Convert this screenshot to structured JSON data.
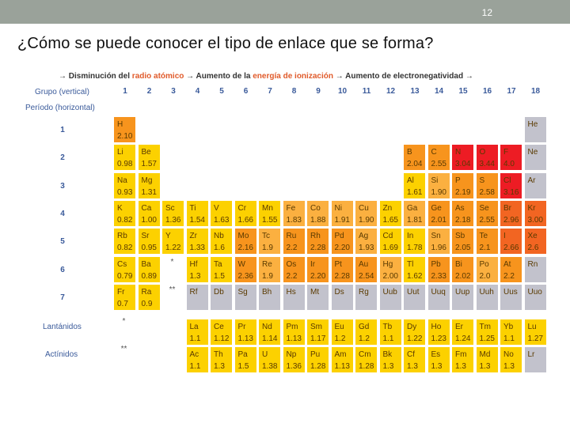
{
  "page_number": "12",
  "title": "¿Cómo se puede conocer el tipo de enlace que se forma?",
  "table": {
    "header_parts": [
      "→ Disminución del ",
      "radio atómico",
      " → Aumento de la ",
      "energía de ionización",
      " → Aumento de electronegatividad →"
    ],
    "group_label": "Grupo (vertical)",
    "period_label": "Período (horizontal)",
    "lanthanides_label": "Lantánidos",
    "actinides_label": "Actínidos",
    "groups": [
      "1",
      "2",
      "3",
      "4",
      "5",
      "6",
      "7",
      "8",
      "9",
      "10",
      "11",
      "12",
      "13",
      "14",
      "15",
      "16",
      "17",
      "18"
    ],
    "periods": [
      "1",
      "2",
      "3",
      "4",
      "5",
      "6",
      "7"
    ],
    "star_marks": [
      "*",
      "**",
      "*",
      "**"
    ],
    "colors": {
      "yellow": "#fcd100",
      "light_orange": "#fbb040",
      "orange": "#f7941d",
      "dark_orange": "#f26522",
      "red": "#ed1c24",
      "gray": "#c2c2cc"
    },
    "elements": [
      {
        "s": "H",
        "v": "2.10",
        "r": 1,
        "c": 1,
        "k": "orange"
      },
      {
        "s": "He",
        "v": "",
        "r": 1,
        "c": 18,
        "k": "gray"
      },
      {
        "s": "Li",
        "v": "0.98",
        "r": 2,
        "c": 1,
        "k": "yellow"
      },
      {
        "s": "Be",
        "v": "1.57",
        "r": 2,
        "c": 2,
        "k": "yellow"
      },
      {
        "s": "B",
        "v": "2.04",
        "r": 2,
        "c": 13,
        "k": "orange"
      },
      {
        "s": "C",
        "v": "2.55",
        "r": 2,
        "c": 14,
        "k": "orange"
      },
      {
        "s": "N",
        "v": "3.04",
        "r": 2,
        "c": 15,
        "k": "red"
      },
      {
        "s": "O",
        "v": "3.44",
        "r": 2,
        "c": 16,
        "k": "red"
      },
      {
        "s": "F",
        "v": "4.0",
        "r": 2,
        "c": 17,
        "k": "red"
      },
      {
        "s": "Ne",
        "v": "",
        "r": 2,
        "c": 18,
        "k": "gray"
      },
      {
        "s": "Na",
        "v": "0.93",
        "r": 3,
        "c": 1,
        "k": "yellow"
      },
      {
        "s": "Mg",
        "v": "1.31",
        "r": 3,
        "c": 2,
        "k": "yellow"
      },
      {
        "s": "Al",
        "v": "1.61",
        "r": 3,
        "c": 13,
        "k": "yellow"
      },
      {
        "s": "Si",
        "v": "1.90",
        "r": 3,
        "c": 14,
        "k": "light_orange"
      },
      {
        "s": "P",
        "v": "2.19",
        "r": 3,
        "c": 15,
        "k": "orange"
      },
      {
        "s": "S",
        "v": "2.58",
        "r": 3,
        "c": 16,
        "k": "orange"
      },
      {
        "s": "Cl",
        "v": "3.16",
        "r": 3,
        "c": 17,
        "k": "red"
      },
      {
        "s": "Ar",
        "v": "",
        "r": 3,
        "c": 18,
        "k": "gray"
      },
      {
        "s": "K",
        "v": "0.82",
        "r": 4,
        "c": 1,
        "k": "yellow"
      },
      {
        "s": "Ca",
        "v": "1.00",
        "r": 4,
        "c": 2,
        "k": "yellow"
      },
      {
        "s": "Sc",
        "v": "1.36",
        "r": 4,
        "c": 3,
        "k": "yellow"
      },
      {
        "s": "Ti",
        "v": "1.54",
        "r": 4,
        "c": 4,
        "k": "yellow"
      },
      {
        "s": "V",
        "v": "1.63",
        "r": 4,
        "c": 5,
        "k": "yellow"
      },
      {
        "s": "Cr",
        "v": "1.66",
        "r": 4,
        "c": 6,
        "k": "yellow"
      },
      {
        "s": "Mn",
        "v": "1.55",
        "r": 4,
        "c": 7,
        "k": "yellow"
      },
      {
        "s": "Fe",
        "v": "1.83",
        "r": 4,
        "c": 8,
        "k": "light_orange"
      },
      {
        "s": "Co",
        "v": "1.88",
        "r": 4,
        "c": 9,
        "k": "light_orange"
      },
      {
        "s": "Ni",
        "v": "1.91",
        "r": 4,
        "c": 10,
        "k": "light_orange"
      },
      {
        "s": "Cu",
        "v": "1.90",
        "r": 4,
        "c": 11,
        "k": "light_orange"
      },
      {
        "s": "Zn",
        "v": "1.65",
        "r": 4,
        "c": 12,
        "k": "yellow"
      },
      {
        "s": "Ga",
        "v": "1.81",
        "r": 4,
        "c": 13,
        "k": "light_orange"
      },
      {
        "s": "Ge",
        "v": "2.01",
        "r": 4,
        "c": 14,
        "k": "orange"
      },
      {
        "s": "As",
        "v": "2.18",
        "r": 4,
        "c": 15,
        "k": "orange"
      },
      {
        "s": "Se",
        "v": "2.55",
        "r": 4,
        "c": 16,
        "k": "orange"
      },
      {
        "s": "Br",
        "v": "2.96",
        "r": 4,
        "c": 17,
        "k": "dark_orange"
      },
      {
        "s": "Kr",
        "v": "3.00",
        "r": 4,
        "c": 18,
        "k": "dark_orange"
      },
      {
        "s": "Rb",
        "v": "0.82",
        "r": 5,
        "c": 1,
        "k": "yellow"
      },
      {
        "s": "Sr",
        "v": "0.95",
        "r": 5,
        "c": 2,
        "k": "yellow"
      },
      {
        "s": "Y",
        "v": "1.22",
        "r": 5,
        "c": 3,
        "k": "yellow"
      },
      {
        "s": "Zr",
        "v": "1.33",
        "r": 5,
        "c": 4,
        "k": "yellow"
      },
      {
        "s": "Nb",
        "v": "1.6",
        "r": 5,
        "c": 5,
        "k": "yellow"
      },
      {
        "s": "Mo",
        "v": "2.16",
        "r": 5,
        "c": 6,
        "k": "orange"
      },
      {
        "s": "Tc",
        "v": "1.9",
        "r": 5,
        "c": 7,
        "k": "light_orange"
      },
      {
        "s": "Ru",
        "v": "2.2",
        "r": 5,
        "c": 8,
        "k": "orange"
      },
      {
        "s": "Rh",
        "v": "2.28",
        "r": 5,
        "c": 9,
        "k": "orange"
      },
      {
        "s": "Pd",
        "v": "2.20",
        "r": 5,
        "c": 10,
        "k": "orange"
      },
      {
        "s": "Ag",
        "v": "1.93",
        "r": 5,
        "c": 11,
        "k": "light_orange"
      },
      {
        "s": "Cd",
        "v": "1.69",
        "r": 5,
        "c": 12,
        "k": "yellow"
      },
      {
        "s": "In",
        "v": "1.78",
        "r": 5,
        "c": 13,
        "k": "yellow"
      },
      {
        "s": "Sn",
        "v": "1.96",
        "r": 5,
        "c": 14,
        "k": "light_orange"
      },
      {
        "s": "Sb",
        "v": "2.05",
        "r": 5,
        "c": 15,
        "k": "orange"
      },
      {
        "s": "Te",
        "v": "2.1",
        "r": 5,
        "c": 16,
        "k": "orange"
      },
      {
        "s": "I",
        "v": "2.66",
        "r": 5,
        "c": 17,
        "k": "dark_orange"
      },
      {
        "s": "Xe",
        "v": "2.6",
        "r": 5,
        "c": 18,
        "k": "dark_orange"
      },
      {
        "s": "Cs",
        "v": "0.79",
        "r": 6,
        "c": 1,
        "k": "yellow"
      },
      {
        "s": "Ba",
        "v": "0.89",
        "r": 6,
        "c": 2,
        "k": "yellow"
      },
      {
        "s": "Hf",
        "v": "1.3",
        "r": 6,
        "c": 4,
        "k": "yellow"
      },
      {
        "s": "Ta",
        "v": "1.5",
        "r": 6,
        "c": 5,
        "k": "yellow"
      },
      {
        "s": "W",
        "v": "2.36",
        "r": 6,
        "c": 6,
        "k": "orange"
      },
      {
        "s": "Re",
        "v": "1.9",
        "r": 6,
        "c": 7,
        "k": "light_orange"
      },
      {
        "s": "Os",
        "v": "2.2",
        "r": 6,
        "c": 8,
        "k": "orange"
      },
      {
        "s": "Ir",
        "v": "2.20",
        "r": 6,
        "c": 9,
        "k": "orange"
      },
      {
        "s": "Pt",
        "v": "2.28",
        "r": 6,
        "c": 10,
        "k": "orange"
      },
      {
        "s": "Au",
        "v": "2.54",
        "r": 6,
        "c": 11,
        "k": "orange"
      },
      {
        "s": "Hg",
        "v": "2.00",
        "r": 6,
        "c": 12,
        "k": "light_orange"
      },
      {
        "s": "Tl",
        "v": "1.62",
        "r": 6,
        "c": 13,
        "k": "yellow"
      },
      {
        "s": "Pb",
        "v": "2.33",
        "r": 6,
        "c": 14,
        "k": "orange"
      },
      {
        "s": "Bi",
        "v": "2.02",
        "r": 6,
        "c": 15,
        "k": "orange"
      },
      {
        "s": "Po",
        "v": "2.0",
        "r": 6,
        "c": 16,
        "k": "light_orange"
      },
      {
        "s": "At",
        "v": "2.2",
        "r": 6,
        "c": 17,
        "k": "orange"
      },
      {
        "s": "Rn",
        "v": "",
        "r": 6,
        "c": 18,
        "k": "gray"
      },
      {
        "s": "Fr",
        "v": "0.7",
        "r": 7,
        "c": 1,
        "k": "yellow"
      },
      {
        "s": "Ra",
        "v": "0.9",
        "r": 7,
        "c": 2,
        "k": "yellow"
      },
      {
        "s": "Rf",
        "v": "",
        "r": 7,
        "c": 4,
        "k": "gray"
      },
      {
        "s": "Db",
        "v": "",
        "r": 7,
        "c": 5,
        "k": "gray"
      },
      {
        "s": "Sg",
        "v": "",
        "r": 7,
        "c": 6,
        "k": "gray"
      },
      {
        "s": "Bh",
        "v": "",
        "r": 7,
        "c": 7,
        "k": "gray"
      },
      {
        "s": "Hs",
        "v": "",
        "r": 7,
        "c": 8,
        "k": "gray"
      },
      {
        "s": "Mt",
        "v": "",
        "r": 7,
        "c": 9,
        "k": "gray"
      },
      {
        "s": "Ds",
        "v": "",
        "r": 7,
        "c": 10,
        "k": "gray"
      },
      {
        "s": "Rg",
        "v": "",
        "r": 7,
        "c": 11,
        "k": "gray"
      },
      {
        "s": "Uub",
        "v": "",
        "r": 7,
        "c": 12,
        "k": "gray"
      },
      {
        "s": "Uut",
        "v": "",
        "r": 7,
        "c": 13,
        "k": "gray"
      },
      {
        "s": "Uuq",
        "v": "",
        "r": 7,
        "c": 14,
        "k": "gray"
      },
      {
        "s": "Uup",
        "v": "",
        "r": 7,
        "c": 15,
        "k": "gray"
      },
      {
        "s": "Uuh",
        "v": "",
        "r": 7,
        "c": 16,
        "k": "gray"
      },
      {
        "s": "Uus",
        "v": "",
        "r": 7,
        "c": 17,
        "k": "gray"
      },
      {
        "s": "Uuo",
        "v": "",
        "r": 7,
        "c": 18,
        "k": "gray"
      },
      {
        "s": "La",
        "v": "1.1",
        "r": 8,
        "c": 4,
        "k": "yellow"
      },
      {
        "s": "Ce",
        "v": "1.12",
        "r": 8,
        "c": 5,
        "k": "yellow"
      },
      {
        "s": "Pr",
        "v": "1.13",
        "r": 8,
        "c": 6,
        "k": "yellow"
      },
      {
        "s": "Nd",
        "v": "1.14",
        "r": 8,
        "c": 7,
        "k": "yellow"
      },
      {
        "s": "Pm",
        "v": "1.13",
        "r": 8,
        "c": 8,
        "k": "yellow"
      },
      {
        "s": "Sm",
        "v": "1.17",
        "r": 8,
        "c": 9,
        "k": "yellow"
      },
      {
        "s": "Eu",
        "v": "1.2",
        "r": 8,
        "c": 10,
        "k": "yellow"
      },
      {
        "s": "Gd",
        "v": "1.2",
        "r": 8,
        "c": 11,
        "k": "yellow"
      },
      {
        "s": "Tb",
        "v": "1.1",
        "r": 8,
        "c": 12,
        "k": "yellow"
      },
      {
        "s": "Dy",
        "v": "1.22",
        "r": 8,
        "c": 13,
        "k": "yellow"
      },
      {
        "s": "Ho",
        "v": "1.23",
        "r": 8,
        "c": 14,
        "k": "yellow"
      },
      {
        "s": "Er",
        "v": "1.24",
        "r": 8,
        "c": 15,
        "k": "yellow"
      },
      {
        "s": "Tm",
        "v": "1.25",
        "r": 8,
        "c": 16,
        "k": "yellow"
      },
      {
        "s": "Yb",
        "v": "1.1",
        "r": 8,
        "c": 17,
        "k": "yellow"
      },
      {
        "s": "Lu",
        "v": "1.27",
        "r": 8,
        "c": 18,
        "k": "yellow"
      },
      {
        "s": "Ac",
        "v": "1.1",
        "r": 9,
        "c": 4,
        "k": "yellow"
      },
      {
        "s": "Th",
        "v": "1.3",
        "r": 9,
        "c": 5,
        "k": "yellow"
      },
      {
        "s": "Pa",
        "v": "1.5",
        "r": 9,
        "c": 6,
        "k": "yellow"
      },
      {
        "s": "U",
        "v": "1.38",
        "r": 9,
        "c": 7,
        "k": "yellow"
      },
      {
        "s": "Np",
        "v": "1.36",
        "r": 9,
        "c": 8,
        "k": "yellow"
      },
      {
        "s": "Pu",
        "v": "1.28",
        "r": 9,
        "c": 9,
        "k": "yellow"
      },
      {
        "s": "Am",
        "v": "1.13",
        "r": 9,
        "c": 10,
        "k": "yellow"
      },
      {
        "s": "Cm",
        "v": "1.28",
        "r": 9,
        "c": 11,
        "k": "yellow"
      },
      {
        "s": "Bk",
        "v": "1.3",
        "r": 9,
        "c": 12,
        "k": "yellow"
      },
      {
        "s": "Cf",
        "v": "1.3",
        "r": 9,
        "c": 13,
        "k": "yellow"
      },
      {
        "s": "Es",
        "v": "1.3",
        "r": 9,
        "c": 14,
        "k": "yellow"
      },
      {
        "s": "Fm",
        "v": "1.3",
        "r": 9,
        "c": 15,
        "k": "yellow"
      },
      {
        "s": "Md",
        "v": "1.3",
        "r": 9,
        "c": 16,
        "k": "yellow"
      },
      {
        "s": "No",
        "v": "1.3",
        "r": 9,
        "c": 17,
        "k": "yellow"
      },
      {
        "s": "Lr",
        "v": "",
        "r": 9,
        "c": 18,
        "k": "gray"
      }
    ]
  }
}
